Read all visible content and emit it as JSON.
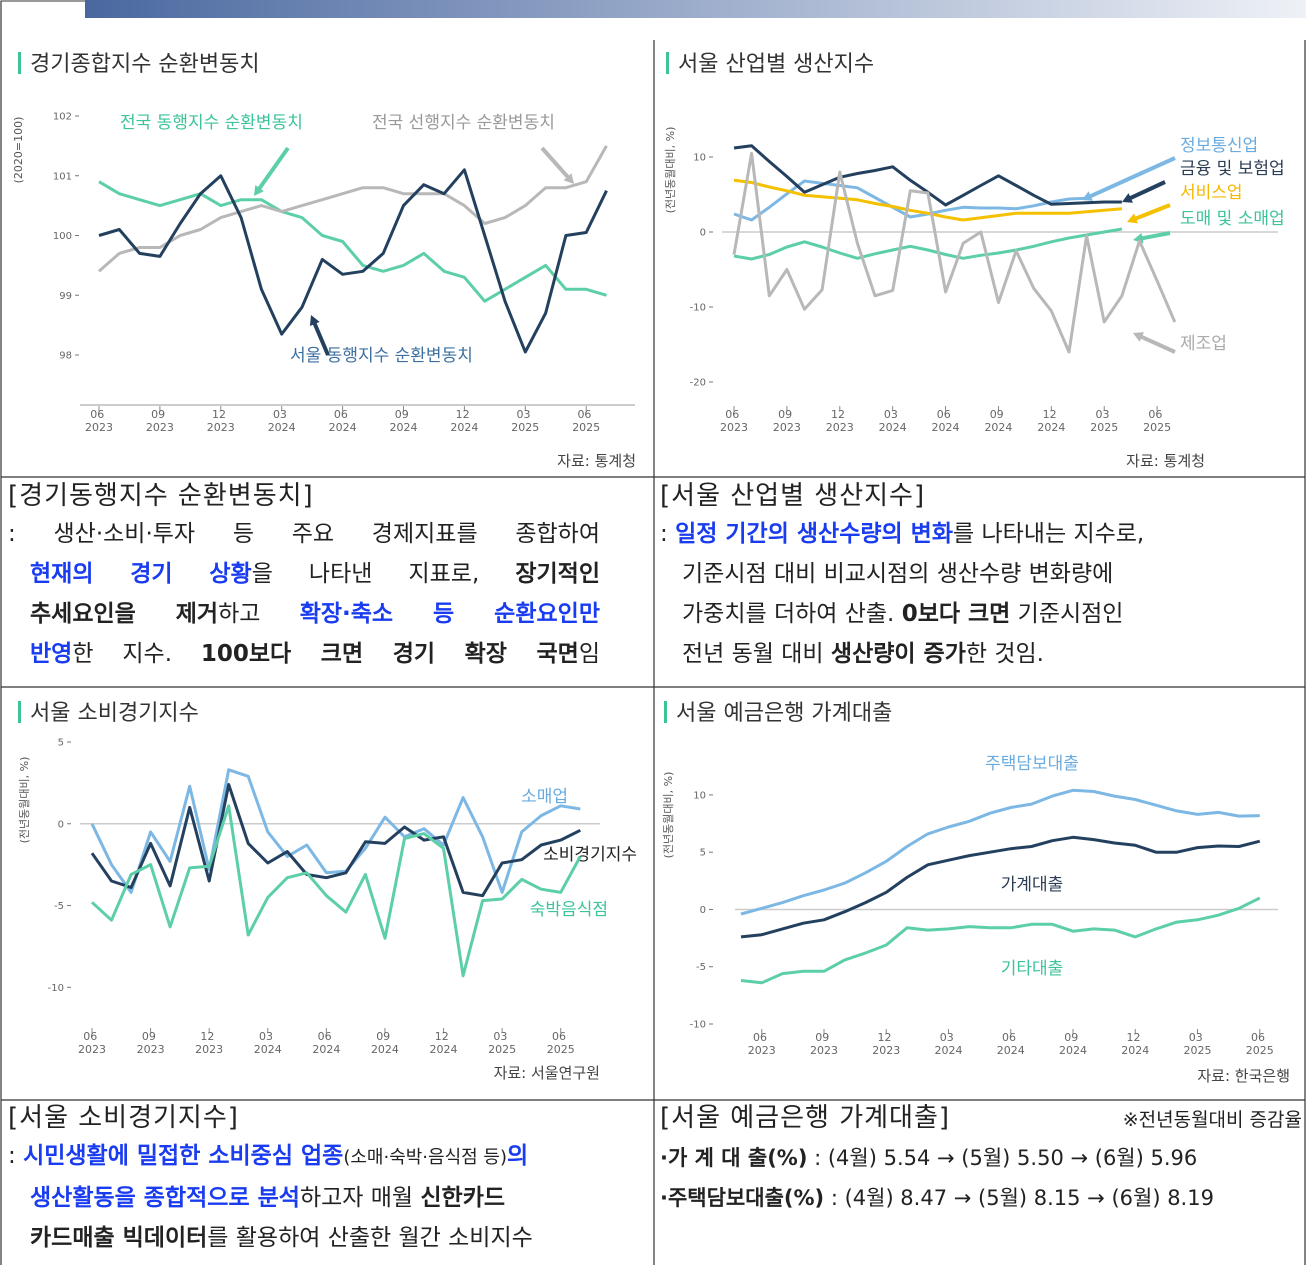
{
  "chart_data": [
    {
      "type": "line",
      "title": "경기종합지수 순환변동치",
      "ylabel": "(2020=100)",
      "source": "자료: 통계청",
      "axis_line": true,
      "categories": [
        "06 2023",
        null,
        null,
        "09 2023",
        null,
        null,
        "12 2023",
        null,
        null,
        "03 2024",
        null,
        null,
        "06 2024",
        null,
        null,
        "09 2024",
        null,
        null,
        "12 2024",
        null,
        null,
        "03 2025",
        null,
        null,
        "06 2025",
        null
      ],
      "ylim": [
        98,
        102
      ],
      "yticks": [
        98,
        99,
        100,
        101,
        102
      ],
      "series": [
        {
          "name": "전국 동행지수 순환변동치",
          "color": "#5ccfa8",
          "values": [
            100.9,
            100.7,
            100.6,
            100.5,
            100.6,
            100.7,
            100.5,
            100.6,
            100.6,
            100.4,
            100.3,
            100.0,
            99.9,
            99.5,
            99.4,
            99.5,
            99.7,
            99.4,
            99.3,
            98.9,
            99.1,
            99.3,
            99.5,
            99.1,
            99.1,
            99.0
          ]
        },
        {
          "name": "전국 선행지수 순환변동치",
          "color": "#b8b8b8",
          "values": [
            99.4,
            99.7,
            99.8,
            99.8,
            100.0,
            100.1,
            100.3,
            100.4,
            100.5,
            100.4,
            100.5,
            100.6,
            100.7,
            100.8,
            100.8,
            100.7,
            100.7,
            100.7,
            100.5,
            100.2,
            100.3,
            100.5,
            100.8,
            100.8,
            100.9,
            101.5
          ]
        },
        {
          "name": "서울 동행지수 순환변동치",
          "color": "#24405f",
          "values": [
            100.0,
            100.1,
            99.7,
            99.65,
            100.2,
            100.7,
            101.0,
            100.3,
            99.1,
            98.35,
            98.8,
            99.6,
            99.35,
            99.4,
            99.7,
            100.5,
            100.85,
            100.7,
            101.1,
            100.0,
            98.9,
            98.05,
            98.7,
            100.0,
            100.05,
            100.75
          ]
        }
      ]
    },
    {
      "type": "line",
      "title": "서울 산업별 생산지수",
      "ylabel": "(전년동월대비, %)",
      "source": "자료: 통계청",
      "hline": 0,
      "categories": [
        "06 2023",
        null,
        null,
        "09 2023",
        null,
        null,
        "12 2023",
        null,
        null,
        "03 2024",
        null,
        null,
        "06 2024",
        null,
        null,
        "09 2024",
        null,
        null,
        "12 2024",
        null,
        null,
        "03 2025",
        null,
        null,
        "06 2025",
        null
      ],
      "ylim": [
        -20,
        12
      ],
      "yticks": [
        -20,
        -10,
        0,
        10
      ],
      "series": [
        {
          "name": "정보통신업",
          "color": "#7db8e4",
          "values": [
            2.4,
            1.6,
            3.3,
            5.1,
            6.8,
            6.5,
            6.2,
            5.9,
            4.6,
            3.3,
            2.0,
            2.4,
            2.9,
            3.3,
            3.2,
            3.2,
            3.1,
            3.5,
            4.0,
            4.4,
            4.5,
            null,
            null,
            null,
            null,
            null
          ]
        },
        {
          "name": "금융 및 보험업",
          "color": "#24405f",
          "values": [
            11.2,
            11.5,
            9.4,
            7.4,
            5.3,
            6.3,
            7.3,
            7.8,
            8.2,
            8.7,
            6.9,
            5.3,
            3.6,
            4.9,
            6.2,
            7.5,
            6.2,
            4.9,
            3.7,
            3.8,
            3.9,
            4.0,
            4.0,
            null,
            null,
            null
          ]
        },
        {
          "name": "서비스업",
          "color": "#f5c000",
          "values": [
            6.9,
            6.6,
            6.0,
            5.5,
            4.9,
            4.7,
            4.5,
            4.3,
            3.8,
            3.4,
            2.9,
            2.5,
            2.0,
            1.6,
            1.9,
            2.2,
            2.5,
            2.5,
            2.5,
            2.5,
            2.7,
            2.9,
            3.1,
            null,
            null,
            null
          ]
        },
        {
          "name": "도매 및 소매업",
          "color": "#5ccfa8",
          "values": [
            -3.2,
            -3.6,
            -3.0,
            -2.0,
            -1.3,
            -2.0,
            -2.8,
            -3.5,
            -2.9,
            -2.4,
            -1.9,
            -2.4,
            -3.0,
            -3.5,
            -3.1,
            -2.8,
            -2.4,
            -1.9,
            -1.3,
            -0.8,
            -0.4,
            0.0,
            0.4,
            null,
            null,
            null
          ]
        },
        {
          "name": "제조업",
          "color": "#b8b8b8",
          "values": [
            -3,
            10.5,
            -8.5,
            -5,
            -10.3,
            -7.7,
            8,
            -1.5,
            -8.5,
            -7.8,
            5.5,
            5.2,
            -8,
            -1.5,
            0,
            -9.4,
            -2.5,
            -7.5,
            -10.5,
            -16,
            -0.5,
            -12,
            -8.5,
            -1.2,
            -6.5,
            -12
          ]
        }
      ]
    },
    {
      "type": "line",
      "title": "서울 소비경기지수",
      "ylabel": "(전년동월대비, %)",
      "source": "자료: 서울연구원",
      "hline": 0,
      "categories": [
        "06 2023",
        null,
        null,
        "09 2023",
        null,
        null,
        "12 2023",
        null,
        null,
        "03 2024",
        null,
        null,
        "06 2024",
        null,
        null,
        "09 2024",
        null,
        null,
        "12 2024",
        null,
        null,
        "03 2025",
        null,
        null,
        "06 2025",
        null
      ],
      "ylim": [
        -12,
        5
      ],
      "yticks": [
        -10,
        -5,
        0,
        5
      ],
      "series": [
        {
          "name": "소매업",
          "color": "#7db8e4",
          "values": [
            0,
            -2.5,
            -4.2,
            -0.5,
            -2.3,
            2.3,
            -2.8,
            3.3,
            2.9,
            -0.5,
            -2,
            -1.3,
            -3.0,
            -2.9,
            -1.5,
            0.4,
            -0.8,
            -0.3,
            -1.3,
            1.6,
            -0.8,
            -4.2,
            -0.5,
            0.5,
            1.1,
            0.9
          ]
        },
        {
          "name": "소비경기지수",
          "color": "#24405f",
          "values": [
            -1.8,
            -3.5,
            -3.9,
            -1.2,
            -3.8,
            1,
            -3.5,
            2.4,
            -1.2,
            -2.4,
            -1.7,
            -3.1,
            -3.3,
            -3.0,
            -1.1,
            -1.2,
            -0.2,
            -1.0,
            -0.8,
            -4.2,
            -4.4,
            -2.4,
            -2.2,
            -1.3,
            -1.0,
            -0.4
          ]
        },
        {
          "name": "숙박음식점",
          "color": "#5ccfa8",
          "values": [
            -4.8,
            -5.9,
            -3.1,
            -2.5,
            -6.3,
            -2.7,
            -2.6,
            1.1,
            -6.8,
            -4.5,
            -3.3,
            -3.0,
            -4.4,
            -5.4,
            -3.1,
            -7.0,
            -0.9,
            -0.6,
            -1.5,
            -9.3,
            -4.7,
            -4.6,
            -3.4,
            -4.0,
            -4.2,
            -2.0
          ]
        }
      ]
    },
    {
      "type": "line",
      "title": "서울 예금은행 가계대출",
      "ylabel": "(전년동월대비, %)",
      "source": "자료: 한국은행",
      "hline": 0,
      "categories": [
        null,
        "06 2023",
        null,
        null,
        "09 2023",
        null,
        null,
        "12 2023",
        null,
        null,
        "03 2024",
        null,
        null,
        "06 2024",
        null,
        null,
        "09 2024",
        null,
        null,
        "12 2024",
        null,
        null,
        "03 2025",
        null,
        null,
        "06 2025"
      ],
      "ylim": [
        -10,
        12
      ],
      "yticks": [
        -10,
        -5,
        0,
        5,
        10
      ],
      "series": [
        {
          "name": "주택담보대출",
          "color": "#7db8e4",
          "values": [
            -0.4,
            0.1,
            0.6,
            1.2,
            1.7,
            2.3,
            3.2,
            4.2,
            5.5,
            6.6,
            7.2,
            7.7,
            8.4,
            8.9,
            9.2,
            9.9,
            10.4,
            10.3,
            9.9,
            9.6,
            9.1,
            8.6,
            8.3,
            8.47,
            8.15,
            8.19
          ]
        },
        {
          "name": "가계대출",
          "color": "#24405f",
          "values": [
            -2.4,
            -2.2,
            -1.7,
            -1.2,
            -0.9,
            -0.2,
            0.6,
            1.5,
            2.8,
            3.9,
            4.3,
            4.7,
            5.0,
            5.3,
            5.5,
            6.0,
            6.3,
            6.1,
            5.8,
            5.6,
            5.0,
            5.0,
            5.4,
            5.54,
            5.5,
            5.96
          ]
        },
        {
          "name": "기타대출",
          "color": "#5ccfa8",
          "values": [
            -6.2,
            -6.4,
            -5.6,
            -5.4,
            -5.4,
            -4.4,
            -3.8,
            -3.1,
            -1.6,
            -1.8,
            -1.7,
            -1.5,
            -1.6,
            -1.6,
            -1.3,
            -1.3,
            -1.9,
            -1.7,
            -1.8,
            -2.4,
            -1.7,
            -1.1,
            -0.9,
            -0.5,
            0.1,
            1.0
          ]
        }
      ]
    }
  ],
  "sections": [
    {
      "title": "[경기동행지수 순환변동치]",
      "lines": [
        [
          {
            "text": ": 생산·소비·투자 등 주요 경제지표를 종합하여"
          }
        ],
        [
          {
            "text": "현재의 경기 상황",
            "style": "blue"
          },
          {
            "text": "을 나타낸 지표로, "
          },
          {
            "text": "장기적인",
            "style": "bold"
          }
        ],
        [
          {
            "text": "추세요인을 제거",
            "style": "bold"
          },
          {
            "text": "하고 "
          },
          {
            "text": "확장·축소 등 순환요인만",
            "style": "blue"
          }
        ],
        [
          {
            "text": "반영",
            "style": "blue"
          },
          {
            "text": "한 지수. "
          },
          {
            "text": "100보다 크면 경기 확장 국면",
            "style": "bold"
          },
          {
            "text": "임"
          }
        ]
      ]
    },
    {
      "title": "[서울 산업별 생산지수]",
      "lines": [
        [
          {
            "text": ": "
          },
          {
            "text": "일정 기간의 생산수량의 변화",
            "style": "blue"
          },
          {
            "text": "를 나타내는 지수로,"
          }
        ],
        [
          {
            "text": "기준시점 대비 비교시점의 생산수량 변화량에"
          }
        ],
        [
          {
            "text": "가중치를 더하여 산출. "
          },
          {
            "text": "0보다 크면",
            "style": "bold"
          },
          {
            "text": " 기준시점인"
          }
        ],
        [
          {
            "text": "전년 동월 대비 "
          },
          {
            "text": "생산량이 증가",
            "style": "bold"
          },
          {
            "text": "한 것임."
          }
        ]
      ]
    },
    {
      "title": "[서울 소비경기지수]",
      "lines": [
        [
          {
            "text": ": "
          },
          {
            "text": "시민생활에 밀접한 소비중심 업종",
            "style": "blue"
          },
          {
            "text": "(소매·숙박·음식점 등)",
            "style": "small"
          },
          {
            "text": "의",
            "style": "blue"
          }
        ],
        [
          {
            "text": "생산활동을 종합적으로 분석",
            "style": "blue"
          },
          {
            "text": "하고자 매월 "
          },
          {
            "text": "신한카드",
            "style": "bold"
          }
        ],
        [
          {
            "text": "카드매출 빅데이터",
            "style": "bold"
          },
          {
            "text": "를 활용하여 산출한 월간 소비지수"
          }
        ]
      ]
    },
    {
      "title": "[서울 예금은행 가계대출]",
      "note": "※전년동월대비 증감율",
      "lines": [
        [
          {
            "text": "·가 계 대 출(%)",
            "style": "bold"
          },
          {
            "text": " : (4월) 5.54 → (5월) 5.50 → (6월) 5.96"
          }
        ],
        [
          {
            "text": "·주택담보대출(%)",
            "style": "bold"
          },
          {
            "text": " : (4월) 8.47 → (5월) 8.15 → (6월) 8.19"
          }
        ]
      ]
    }
  ]
}
